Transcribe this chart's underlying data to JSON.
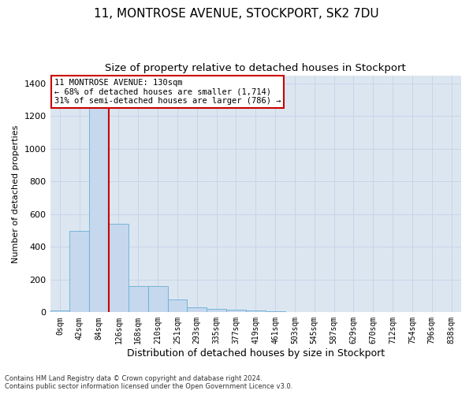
{
  "title": "11, MONTROSE AVENUE, STOCKPORT, SK2 7DU",
  "subtitle": "Size of property relative to detached houses in Stockport",
  "xlabel": "Distribution of detached houses by size in Stockport",
  "ylabel": "Number of detached properties",
  "footer": "Contains HM Land Registry data © Crown copyright and database right 2024.\nContains public sector information licensed under the Open Government Licence v3.0.",
  "bar_labels": [
    "0sqm",
    "42sqm",
    "84sqm",
    "126sqm",
    "168sqm",
    "210sqm",
    "251sqm",
    "293sqm",
    "335sqm",
    "377sqm",
    "419sqm",
    "461sqm",
    "503sqm",
    "545sqm",
    "587sqm",
    "629sqm",
    "670sqm",
    "712sqm",
    "754sqm",
    "796sqm",
    "838sqm"
  ],
  "bar_values": [
    10,
    500,
    1250,
    540,
    160,
    160,
    80,
    30,
    20,
    15,
    10,
    7,
    0,
    0,
    0,
    0,
    0,
    0,
    0,
    0,
    0
  ],
  "bar_color": "#c5d8ed",
  "bar_edgecolor": "#6baed6",
  "property_line_x": 2.5,
  "annotation_text": "11 MONTROSE AVENUE: 130sqm\n← 68% of detached houses are smaller (1,714)\n31% of semi-detached houses are larger (786) →",
  "annotation_box_facecolor": "#ffffff",
  "annotation_border_color": "#cc0000",
  "vline_color": "#cc0000",
  "ylim": [
    0,
    1450
  ],
  "yticks": [
    0,
    200,
    400,
    600,
    800,
    1000,
    1200,
    1400
  ],
  "grid_color": "#c8d4e8",
  "plot_bg_color": "#dce6f1",
  "title_fontsize": 11,
  "subtitle_fontsize": 9.5,
  "xlabel_fontsize": 9,
  "ylabel_fontsize": 8,
  "tick_fontsize": 8,
  "xtick_fontsize": 7
}
